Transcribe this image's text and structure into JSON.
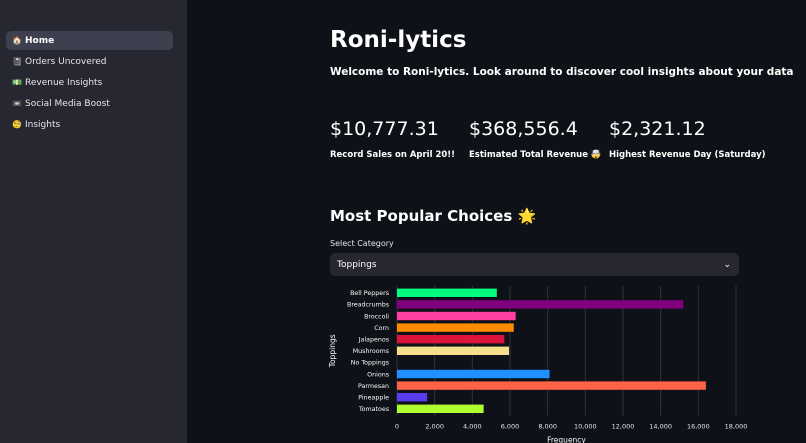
{
  "sidebar": {
    "items": [
      {
        "icon": "🏠",
        "icon_name": "house-icon",
        "label": "Home",
        "active": true
      },
      {
        "icon": "📓",
        "icon_name": "notebook-icon",
        "label": "Orders Uncovered",
        "active": false
      },
      {
        "icon": "💵",
        "icon_name": "cash-icon",
        "label": "Revenue Insights",
        "active": false
      },
      {
        "icon": "📼",
        "icon_name": "media-icon",
        "label": "Social Media Boost",
        "active": false
      },
      {
        "icon": "🧐",
        "icon_name": "face-icon",
        "label": "Insights",
        "active": false
      }
    ]
  },
  "main": {
    "title": "Roni-lytics",
    "subtitle": "Welcome to Roni-lytics. Look around to discover cool insights about your data",
    "metrics": [
      {
        "value": "$10,777.31",
        "label": "Record Sales on April 20!!"
      },
      {
        "value": "$368,556.4",
        "label": "Estimated Total Revenue 🤯"
      },
      {
        "value": "$2,321.12",
        "label": "Highest Revenue Day (Saturday)"
      }
    ],
    "section_title": "Most Popular Choices 🌟",
    "select": {
      "label": "Select Category",
      "value": "Toppings"
    }
  },
  "chart_data": {
    "type": "bar",
    "orientation": "horizontal",
    "categories": [
      "Bell Peppers",
      "Breadcrumbs",
      "Broccoli",
      "Corn",
      "Jalapenos",
      "Mushrooms",
      "No Toppings",
      "Onions",
      "Parmesan",
      "Pineapple",
      "Tomatoes"
    ],
    "values": [
      5300,
      15200,
      6300,
      6200,
      5700,
      5950,
      0,
      8100,
      16400,
      1600,
      4600
    ],
    "colors": [
      "#00ff7f",
      "#800080",
      "#ff3fa4",
      "#ff8c00",
      "#dc143c",
      "#f5de8c",
      "#ffffff",
      "#1e90ff",
      "#ff6347",
      "#5a3cf0",
      "#adff2f"
    ],
    "ylabel": "Toppings",
    "xlabel": "Frequency",
    "xlim": [
      0,
      18000
    ],
    "xticks": [
      "0",
      "2,000",
      "4,000",
      "6,000",
      "8,000",
      "10,000",
      "12,000",
      "14,000",
      "16,000",
      "18,000"
    ],
    "grid": "vertical"
  }
}
